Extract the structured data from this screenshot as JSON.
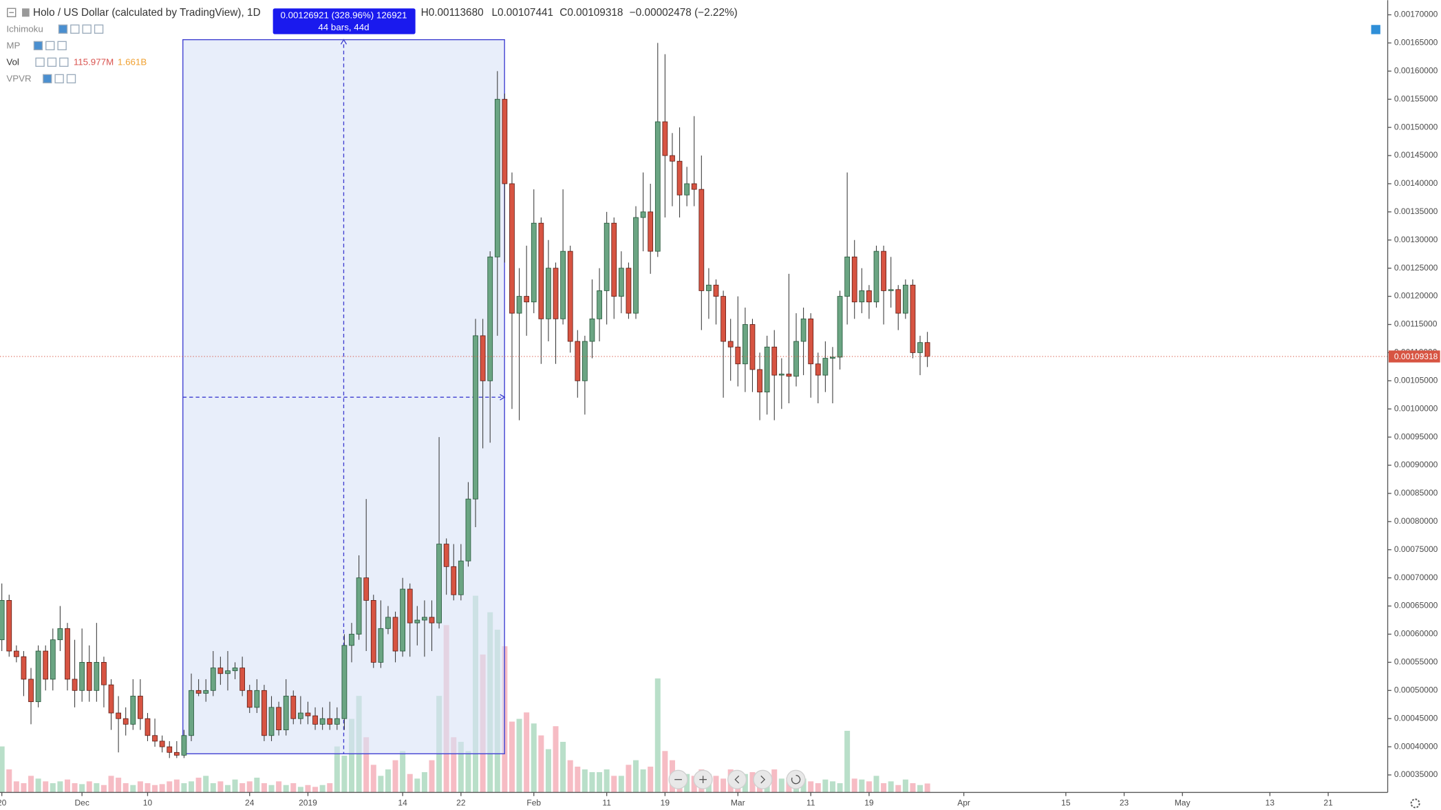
{
  "chart_data": {
    "type": "candlestick",
    "header": {
      "symbol": "Holo / US Dollar (calculated by TradingView), 1D",
      "high_label": "H0.00113680",
      "low_label": "L0.00107441",
      "close_label": "C0.00109318",
      "change_label": "−0.00002478 (−2.22%)"
    },
    "indicators": [
      {
        "name": "Ichimoku"
      },
      {
        "name": "MP"
      },
      {
        "name": "Vol",
        "values": [
          "115.977M",
          "1.661B"
        ]
      },
      {
        "name": "VPVR"
      }
    ],
    "measure": {
      "label": "0.00126921 (328.96%) 126921",
      "bars_label": "44 bars, 44d"
    },
    "last_price": {
      "value": 0.00109318,
      "label": "0.00109318"
    },
    "up_color": "#6ba583",
    "down_color": "#d75442",
    "up_volume_color": "#b9dfc9",
    "down_volume_color": "#f6bcc4",
    "ylim": [
      0.000319,
      0.001726
    ],
    "yticks": [
      {
        "value": 0.00035,
        "label": "0.00035000"
      },
      {
        "value": 0.0004,
        "label": "0.00040000"
      },
      {
        "value": 0.00045,
        "label": "0.00045000"
      },
      {
        "value": 0.0005,
        "label": "0.00050000"
      },
      {
        "value": 0.00055,
        "label": "0.00055000"
      },
      {
        "value": 0.0006,
        "label": "0.00060000"
      },
      {
        "value": 0.00065,
        "label": "0.00065000"
      },
      {
        "value": 0.0007,
        "label": "0.00070000"
      },
      {
        "value": 0.00075,
        "label": "0.00075000"
      },
      {
        "value": 0.0008,
        "label": "0.00080000"
      },
      {
        "value": 0.00085,
        "label": "0.00085000"
      },
      {
        "value": 0.0009,
        "label": "0.00090000"
      },
      {
        "value": 0.00095,
        "label": "0.00095000"
      },
      {
        "value": 0.001,
        "label": "0.00100000"
      },
      {
        "value": 0.00105,
        "label": "0.00105000"
      },
      {
        "value": 0.0011,
        "label": "0.00110000"
      },
      {
        "value": 0.00115,
        "label": "0.00115000"
      },
      {
        "value": 0.0012,
        "label": "0.00120000"
      },
      {
        "value": 0.00125,
        "label": "0.00125000"
      },
      {
        "value": 0.0013,
        "label": "0.00130000"
      },
      {
        "value": 0.00135,
        "label": "0.00135000"
      },
      {
        "value": 0.0014,
        "label": "0.00140000"
      },
      {
        "value": 0.00145,
        "label": "0.00145000"
      },
      {
        "value": 0.0015,
        "label": "0.00150000"
      },
      {
        "value": 0.00155,
        "label": "0.00155000"
      },
      {
        "value": 0.0016,
        "label": "0.00160000"
      },
      {
        "value": 0.00165,
        "label": "0.00165000"
      },
      {
        "value": 0.0017,
        "label": "0.00170000"
      }
    ],
    "categories": [
      "20",
      null,
      null,
      null,
      null,
      null,
      null,
      null,
      null,
      null,
      null,
      "Dec",
      null,
      null,
      null,
      null,
      null,
      null,
      null,
      null,
      "10",
      null,
      null,
      null,
      null,
      null,
      null,
      null,
      null,
      null,
      null,
      null,
      null,
      null,
      "24",
      null,
      null,
      null,
      null,
      null,
      null,
      null,
      "2019",
      null,
      null,
      null,
      null,
      null,
      null,
      null,
      null,
      null,
      null,
      null,
      null,
      "14",
      null,
      null,
      null,
      null,
      null,
      null,
      null,
      "22",
      null,
      null,
      null,
      null,
      null,
      null,
      null,
      null,
      null,
      "Feb",
      null,
      null,
      null,
      null,
      null,
      null,
      null,
      null,
      null,
      "11",
      null,
      null,
      null,
      null,
      null,
      null,
      null,
      "19",
      null,
      null,
      null,
      null,
      null,
      null,
      null,
      null,
      null,
      "Mar",
      null,
      null,
      null,
      null,
      null,
      null,
      null,
      null,
      null,
      "11",
      null,
      null,
      null,
      null,
      null,
      null,
      null,
      "19",
      null,
      null,
      null,
      null,
      null,
      null,
      null,
      null,
      null,
      null,
      null,
      null,
      "Apr",
      null,
      null,
      null,
      null,
      null,
      null,
      null,
      null,
      null,
      null,
      null,
      null,
      null,
      "15",
      null,
      null,
      null,
      null,
      null,
      null,
      null,
      "23",
      null,
      null,
      null,
      null,
      null,
      null,
      null,
      "May",
      null,
      null,
      null,
      null,
      null,
      null,
      null,
      null,
      null,
      null,
      null,
      "13",
      null,
      null,
      null,
      null,
      null,
      null,
      null,
      "21"
    ],
    "open": [
      0.00059,
      0.00066,
      0.00057,
      0.00056,
      0.00052,
      0.00048,
      0.00057,
      0.00052,
      0.00059,
      0.00061,
      0.00052,
      0.0005,
      0.00055,
      0.0005,
      0.00055,
      0.00051,
      0.00046,
      0.00045,
      0.00044,
      0.00049,
      0.00045,
      0.00042,
      0.00041,
      0.0004,
      0.00039,
      0.000385,
      0.00042,
      0.0005,
      0.000495,
      0.0005,
      0.00054,
      0.00053,
      0.000535,
      0.00054,
      0.0005,
      0.00047,
      0.0005,
      0.00042,
      0.00047,
      0.00043,
      0.00049,
      0.00045,
      0.00046,
      0.000455,
      0.00044,
      0.00045,
      0.00044,
      0.00045,
      0.00058,
      0.0006,
      0.0007,
      0.00066,
      0.00055,
      0.00061,
      0.00063,
      0.00057,
      0.00068,
      0.00062,
      0.000625,
      0.00063,
      0.00062,
      0.00076,
      0.00072,
      0.00067,
      0.00073,
      0.00084,
      0.00113,
      0.00105,
      0.00127,
      0.00155,
      0.0014,
      0.00117,
      0.0012,
      0.00119,
      0.00133,
      0.00116,
      0.00125,
      0.00116,
      0.00128,
      0.00112,
      0.00105,
      0.00112,
      0.00116,
      0.00121,
      0.00133,
      0.0012,
      0.00125,
      0.00117,
      0.00134,
      0.00135,
      0.00128,
      0.00151,
      0.00145,
      0.00144,
      0.00138,
      0.0014,
      0.00139,
      0.00121,
      0.00122,
      0.0012,
      0.00112,
      0.00111,
      0.00108,
      0.00115,
      0.00107,
      0.00103,
      0.00111,
      0.00106,
      0.001062,
      0.001058,
      0.00112,
      0.00116,
      0.00108,
      0.00106,
      0.00109,
      0.001092,
      0.0012,
      0.00127,
      0.00119,
      0.00121,
      0.00119,
      0.00128,
      0.00121,
      0.001212,
      0.00117,
      0.00122,
      0.0011,
      0.00111796,
      null,
      null,
      null,
      null,
      null,
      null,
      null,
      null,
      null,
      null,
      null,
      null,
      null,
      null,
      null,
      null,
      null,
      null,
      null,
      null,
      null,
      null,
      null,
      null,
      null,
      null,
      null,
      null,
      null,
      null,
      null,
      null,
      null,
      null,
      null,
      null,
      null,
      null,
      null,
      null,
      null,
      null,
      null,
      null,
      null,
      null,
      null,
      null,
      null,
      null,
      null,
      null,
      null,
      null,
      null
    ],
    "high": [
      0.00069,
      0.00067,
      0.00058,
      0.00057,
      0.00054,
      0.00058,
      0.00058,
      0.00061,
      0.00065,
      0.00062,
      0.00059,
      0.00061,
      0.00058,
      0.00062,
      0.00056,
      0.00052,
      0.00049,
      0.00047,
      0.00052,
      0.00052,
      0.00046,
      0.00045,
      0.00042,
      0.00041,
      0.00041,
      0.00043,
      0.00053,
      0.00052,
      0.00052,
      0.00057,
      0.00056,
      0.00057,
      0.00055,
      0.00056,
      0.00051,
      0.00052,
      0.00051,
      0.00049,
      0.00048,
      0.00052,
      0.0005,
      0.00049,
      0.00048,
      0.00047,
      0.00047,
      0.00048,
      0.00047,
      0.0006,
      0.00062,
      0.00074,
      0.00084,
      0.00067,
      0.00066,
      0.00065,
      0.00064,
      0.0007,
      0.00069,
      0.00065,
      0.00066,
      0.00066,
      0.00095,
      0.00077,
      0.00076,
      0.00076,
      0.00087,
      0.00116,
      0.00116,
      0.00128,
      0.0016,
      0.00156,
      0.00142,
      0.00125,
      0.00129,
      0.00139,
      0.00134,
      0.0013,
      0.00126,
      0.00139,
      0.00129,
      0.00114,
      0.00113,
      0.00123,
      0.00125,
      0.00135,
      0.00134,
      0.00128,
      0.00126,
      0.00136,
      0.00142,
      0.0014,
      0.00165,
      0.00163,
      0.00149,
      0.0015,
      0.00143,
      0.00152,
      0.00145,
      0.00125,
      0.00123,
      0.00121,
      0.00116,
      0.0012,
      0.00118,
      0.00116,
      0.0011,
      0.00113,
      0.00114,
      0.00109,
      0.00124,
      0.00117,
      0.00118,
      0.00117,
      0.0011,
      0.00112,
      0.00111,
      0.00121,
      0.00142,
      0.0013,
      0.00125,
      0.00122,
      0.00129,
      0.00129,
      0.00127,
      0.00122,
      0.00123,
      0.00123,
      0.00113,
      0.0011368,
      null,
      null,
      null,
      null,
      null,
      null,
      null,
      null,
      null,
      null,
      null,
      null,
      null,
      null,
      null,
      null,
      null,
      null,
      null,
      null,
      null,
      null,
      null,
      null,
      null,
      null,
      null,
      null,
      null,
      null,
      null,
      null,
      null,
      null,
      null,
      null,
      null,
      null,
      null,
      null,
      null,
      null,
      null,
      null,
      null,
      null,
      null,
      null,
      null,
      null,
      null,
      null,
      null,
      null,
      null
    ],
    "low": [
      0.00057,
      0.00056,
      0.00055,
      0.00049,
      0.00044,
      0.00047,
      0.0005,
      0.0005,
      0.00057,
      0.0005,
      0.00047,
      0.00048,
      0.00048,
      0.00048,
      0.00047,
      0.00043,
      0.00039,
      0.00042,
      0.00043,
      0.00043,
      0.00041,
      0.0004,
      0.00039,
      0.00038,
      0.00038,
      0.00038,
      0.00041,
      0.00049,
      0.00048,
      0.00049,
      0.00051,
      0.0005,
      0.00052,
      0.00049,
      0.00046,
      0.00046,
      0.00041,
      0.00041,
      0.00042,
      0.00042,
      0.00044,
      0.00044,
      0.00044,
      0.00043,
      0.00043,
      0.00043,
      0.00043,
      0.00043,
      0.00055,
      0.00059,
      0.00057,
      0.00054,
      0.00054,
      0.0006,
      0.00055,
      0.00056,
      0.00056,
      0.00058,
      0.00056,
      0.00057,
      0.00061,
      0.00067,
      0.00066,
      0.00066,
      0.00072,
      0.00079,
      0.00093,
      0.00094,
      0.00113,
      0.00126,
      0.001,
      0.00098,
      0.00113,
      0.00117,
      0.00108,
      0.00112,
      0.00108,
      0.00115,
      0.0011,
      0.00102,
      0.00099,
      0.00109,
      0.00112,
      0.00115,
      0.00116,
      0.00117,
      0.00116,
      0.00116,
      0.00128,
      0.00124,
      0.00127,
      0.00134,
      0.00136,
      0.00134,
      0.00136,
      0.00136,
      0.00114,
      0.00116,
      0.00115,
      0.00102,
      0.00105,
      0.00104,
      0.00103,
      0.00103,
      0.00098,
      0.00099,
      0.00098,
      0.001,
      0.00101,
      0.00104,
      0.00106,
      0.00102,
      0.00101,
      0.00103,
      0.00101,
      0.00107,
      0.00115,
      0.00116,
      0.00117,
      0.00116,
      0.00118,
      0.00115,
      0.00118,
      0.00114,
      0.00116,
      0.00109,
      0.00106,
      0.00107441,
      null,
      null,
      null,
      null,
      null,
      null,
      null,
      null,
      null,
      null,
      null,
      null,
      null,
      null,
      null,
      null,
      null,
      null,
      null,
      null,
      null,
      null,
      null,
      null,
      null,
      null,
      null,
      null,
      null,
      null,
      null,
      null,
      null,
      null,
      null,
      null,
      null,
      null,
      null,
      null,
      null,
      null,
      null,
      null,
      null,
      null,
      null,
      null,
      null,
      null,
      null,
      null,
      null,
      null,
      null
    ],
    "close": [
      0.00066,
      0.00057,
      0.00056,
      0.00052,
      0.00048,
      0.00057,
      0.00052,
      0.00059,
      0.00061,
      0.00052,
      0.0005,
      0.00055,
      0.0005,
      0.00055,
      0.00051,
      0.00046,
      0.00045,
      0.00044,
      0.00049,
      0.00045,
      0.00042,
      0.00041,
      0.0004,
      0.00039,
      0.000385,
      0.00042,
      0.0005,
      0.000495,
      0.0005,
      0.00054,
      0.00053,
      0.000535,
      0.00054,
      0.0005,
      0.00047,
      0.0005,
      0.00042,
      0.00047,
      0.00043,
      0.00049,
      0.00045,
      0.00046,
      0.000455,
      0.00044,
      0.00045,
      0.00044,
      0.00045,
      0.00058,
      0.0006,
      0.0007,
      0.00066,
      0.00055,
      0.00061,
      0.00063,
      0.00057,
      0.00068,
      0.00062,
      0.000625,
      0.00063,
      0.00062,
      0.00076,
      0.00072,
      0.00067,
      0.00073,
      0.00084,
      0.00113,
      0.00105,
      0.00127,
      0.00155,
      0.0014,
      0.00117,
      0.0012,
      0.00119,
      0.00133,
      0.00116,
      0.00125,
      0.00116,
      0.00128,
      0.00112,
      0.00105,
      0.00112,
      0.00116,
      0.00121,
      0.00133,
      0.0012,
      0.00125,
      0.00117,
      0.00134,
      0.00135,
      0.00128,
      0.00151,
      0.00145,
      0.00144,
      0.00138,
      0.0014,
      0.00139,
      0.00121,
      0.00122,
      0.0012,
      0.00112,
      0.00111,
      0.00108,
      0.00115,
      0.00107,
      0.00103,
      0.00111,
      0.00106,
      0.001062,
      0.001058,
      0.00112,
      0.00116,
      0.00108,
      0.00106,
      0.00109,
      0.001092,
      0.0012,
      0.00127,
      0.00119,
      0.00121,
      0.00119,
      0.00128,
      0.00121,
      0.001212,
      0.00117,
      0.00122,
      0.0011,
      0.00111796,
      0.00109318,
      null,
      null,
      null,
      null,
      null,
      null,
      null,
      null,
      null,
      null,
      null,
      null,
      null,
      null,
      null,
      null,
      null,
      null,
      null,
      null,
      null,
      null,
      null,
      null,
      null,
      null,
      null,
      null,
      null,
      null,
      null,
      null,
      null,
      null,
      null,
      null,
      null,
      null,
      null,
      null,
      null,
      null,
      null,
      null,
      null,
      null,
      null,
      null,
      null,
      null,
      null,
      null,
      null,
      null,
      null
    ],
    "volume": [
      600000000,
      300000000,
      144000000,
      120000000,
      216000000,
      180000000,
      144000000,
      120000000,
      144000000,
      168000000,
      120000000,
      108000000,
      144000000,
      120000000,
      96000000,
      216000000,
      192000000,
      120000000,
      96000000,
      144000000,
      120000000,
      96000000,
      108000000,
      144000000,
      168000000,
      120000000,
      144000000,
      192000000,
      216000000,
      120000000,
      144000000,
      96000000,
      168000000,
      120000000,
      144000000,
      192000000,
      120000000,
      96000000,
      144000000,
      96000000,
      120000000,
      72000000,
      96000000,
      72000000,
      96000000,
      120000000,
      600000000,
      480000000,
      960000000,
      1260000000,
      720000000,
      360000000,
      216000000,
      300000000,
      420000000,
      540000000,
      240000000,
      180000000,
      264000000,
      420000000,
      1260000000,
      2184000000,
      720000000,
      660000000,
      540000000,
      2568000000,
      1800000000,
      2352000000,
      2124000000,
      1908000000,
      924000000,
      960000000,
      1044000000,
      900000000,
      744000000,
      564000000,
      864000000,
      660000000,
      420000000,
      336000000,
      300000000,
      264000000,
      264000000,
      300000000,
      216000000,
      216000000,
      360000000,
      420000000,
      300000000,
      336000000,
      1488000000,
      540000000,
      420000000,
      264000000,
      240000000,
      216000000,
      300000000,
      240000000,
      216000000,
      180000000,
      300000000,
      216000000,
      240000000,
      264000000,
      240000000,
      144000000,
      300000000,
      180000000,
      192000000,
      216000000,
      180000000,
      144000000,
      120000000,
      168000000,
      144000000,
      120000000,
      804000000,
      180000000,
      168000000,
      144000000,
      216000000,
      120000000,
      144000000,
      96000000,
      168000000,
      120000000,
      96000000,
      115977000,
      null,
      null,
      null,
      null,
      null,
      null,
      null,
      null,
      null,
      null,
      null,
      null,
      null,
      null,
      null,
      null,
      null,
      null,
      null,
      null,
      null,
      null,
      null,
      null,
      null,
      null,
      null,
      null,
      null,
      null,
      null,
      null,
      null,
      null,
      null,
      null,
      null,
      null,
      null,
      null,
      null,
      null,
      null,
      null,
      null,
      null,
      null,
      null,
      null,
      null,
      null,
      null,
      null,
      null,
      null
    ]
  }
}
